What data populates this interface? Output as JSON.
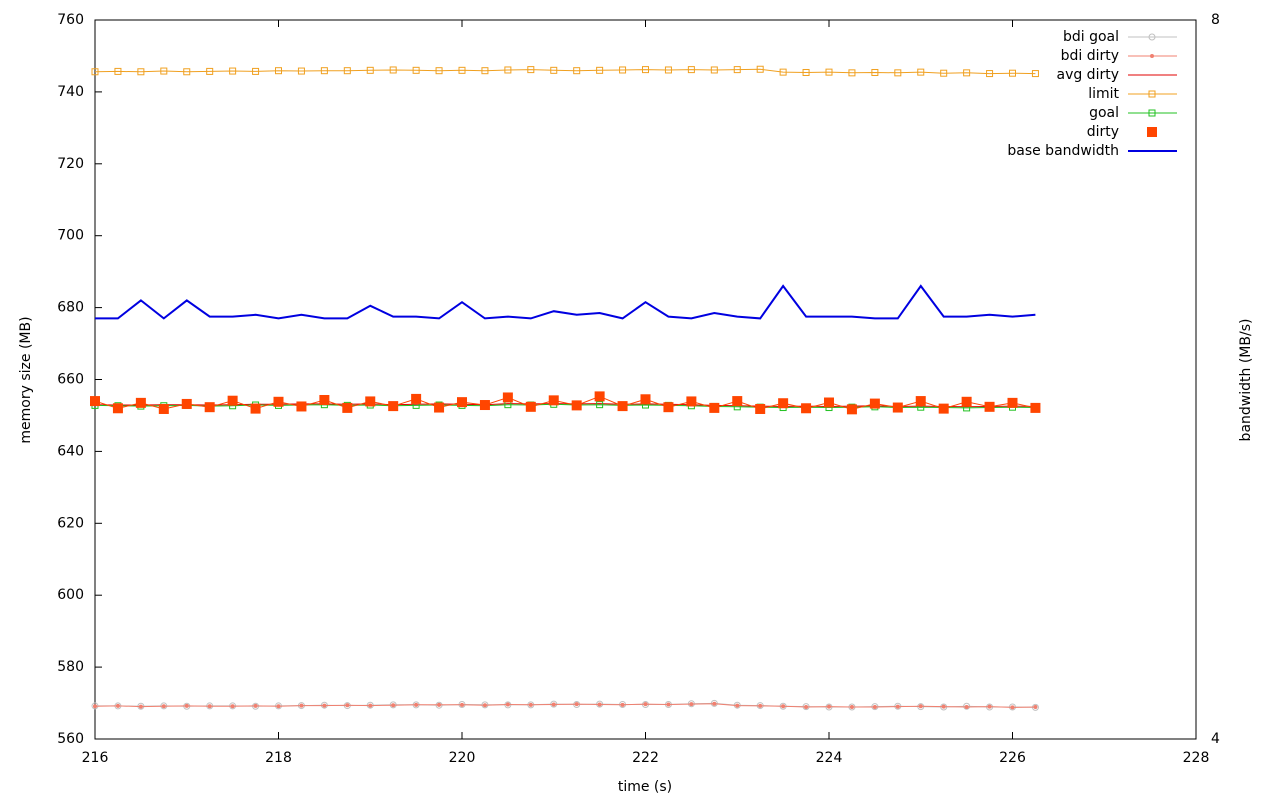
{
  "chart_data": {
    "type": "line",
    "xlabel": "time (s)",
    "ylabel": "memory size (MB)",
    "y2label": "bandwidth (MB/s)",
    "x": [
      216,
      216.25,
      216.5,
      216.75,
      217,
      217.25,
      217.5,
      217.75,
      218,
      218.25,
      218.5,
      218.75,
      219,
      219.25,
      219.5,
      219.75,
      220,
      220.25,
      220.5,
      220.75,
      221,
      221.25,
      221.5,
      221.75,
      222,
      222.25,
      222.5,
      222.75,
      223,
      223.25,
      223.5,
      223.75,
      224,
      224.25,
      224.5,
      224.75,
      225,
      225.25,
      225.5,
      225.75,
      226,
      226.25
    ],
    "xlim": [
      216,
      228
    ],
    "xticks": [
      216,
      218,
      220,
      222,
      224,
      226,
      228
    ],
    "ylim": [
      560,
      760
    ],
    "yticks": [
      560,
      580,
      600,
      620,
      640,
      660,
      680,
      700,
      720,
      740,
      760
    ],
    "y2lim": [
      4,
      8
    ],
    "y2ticks": [
      4,
      8
    ],
    "legend": "upper-right",
    "series": [
      {
        "name": "bdi goal",
        "color": "#c0c0c0",
        "marker": "circle",
        "values": [
          569.2,
          569.2,
          569.1,
          569.2,
          569.1,
          569.2,
          569.2,
          569.1,
          569.2,
          569.3,
          569.4,
          569.3,
          569.4,
          569.5,
          569.5,
          569.4,
          569.6,
          569.5,
          569.5,
          569.5,
          569.7,
          569.6,
          569.7,
          569.6,
          569.6,
          569.6,
          569.8,
          569.9,
          569.4,
          569.3,
          569.1,
          569.0,
          568.9,
          568.9,
          569.0,
          569.1,
          569.0,
          568.9,
          569.1,
          568.9,
          568.9,
          568.8
        ]
      },
      {
        "name": "bdi dirty",
        "color": "#f08070",
        "marker": "dot",
        "values": [
          569.1,
          569.2,
          569.0,
          569.1,
          569.2,
          569.1,
          569.1,
          569.2,
          569.1,
          569.3,
          569.3,
          569.4,
          569.3,
          569.4,
          569.5,
          569.5,
          569.5,
          569.4,
          569.6,
          569.5,
          569.6,
          569.7,
          569.6,
          569.5,
          569.7,
          569.6,
          569.7,
          569.8,
          569.3,
          569.2,
          569.1,
          568.9,
          569.0,
          568.9,
          568.9,
          569.0,
          569.1,
          569.0,
          568.9,
          569.0,
          568.8,
          568.9
        ]
      },
      {
        "name": "avg dirty",
        "color": "#e00000",
        "marker": "none",
        "values": [
          653.0,
          652.9,
          652.9,
          653.0,
          653.0,
          652.9,
          653.0,
          653.1,
          653.1,
          653.2,
          653.2,
          653.1,
          653.2,
          653.0,
          653.1,
          653.2,
          653.1,
          653.0,
          653.3,
          653.2,
          653.3,
          653.2,
          653.3,
          653.1,
          653.2,
          653.1,
          653.0,
          652.8,
          652.7,
          652.6,
          652.5,
          652.6,
          652.5,
          652.6,
          652.7,
          652.5,
          652.6,
          652.5,
          652.4,
          652.5,
          652.6,
          652.5
        ]
      },
      {
        "name": "limit",
        "color": "#f0a020",
        "marker": "square-open",
        "values": [
          745.6,
          745.7,
          745.6,
          745.8,
          745.6,
          745.7,
          745.8,
          745.7,
          745.9,
          745.8,
          745.9,
          745.9,
          746.0,
          746.1,
          746.0,
          745.9,
          746.0,
          745.9,
          746.1,
          746.2,
          746.0,
          745.9,
          746.0,
          746.1,
          746.2,
          746.1,
          746.2,
          746.1,
          746.2,
          746.3,
          745.5,
          745.4,
          745.5,
          745.3,
          745.4,
          745.3,
          745.5,
          745.2,
          745.3,
          745.1,
          745.2,
          745.1
        ]
      },
      {
        "name": "goal",
        "color": "#20c020",
        "marker": "square-open",
        "values": [
          652.8,
          652.7,
          652.6,
          652.7,
          652.8,
          652.6,
          652.7,
          652.9,
          652.8,
          652.9,
          653.0,
          652.8,
          652.9,
          652.7,
          652.8,
          652.9,
          652.8,
          652.7,
          653.0,
          652.9,
          653.1,
          652.9,
          653.0,
          652.8,
          652.9,
          652.8,
          652.7,
          652.5,
          652.4,
          652.3,
          652.2,
          652.3,
          652.2,
          652.3,
          652.4,
          652.2,
          652.3,
          652.2,
          652.1,
          652.2,
          652.3,
          652.2
        ]
      },
      {
        "name": "dirty",
        "color": "#ff4500",
        "marker": "square-filled",
        "values": [
          654.0,
          652.0,
          653.5,
          651.8,
          653.2,
          652.3,
          654.1,
          651.9,
          653.8,
          652.5,
          654.3,
          652.1,
          653.9,
          652.6,
          654.6,
          652.2,
          653.7,
          652.9,
          655.0,
          652.4,
          654.2,
          652.8,
          655.3,
          652.6,
          654.5,
          652.3,
          653.9,
          652.1,
          654.0,
          651.8,
          653.4,
          652.0,
          653.6,
          651.7,
          653.3,
          652.2,
          654.0,
          651.9,
          653.8,
          652.4,
          653.5,
          652.1
        ]
      },
      {
        "name": "base bandwidth",
        "color": "#0000e0",
        "marker": "line-thick",
        "axis": "y2",
        "values": [
          6.34,
          6.34,
          6.44,
          6.34,
          6.44,
          6.35,
          6.35,
          6.36,
          6.34,
          6.36,
          6.34,
          6.34,
          6.41,
          6.35,
          6.35,
          6.34,
          6.43,
          6.34,
          6.35,
          6.34,
          6.38,
          6.36,
          6.37,
          6.34,
          6.43,
          6.35,
          6.34,
          6.37,
          6.35,
          6.34,
          6.52,
          6.35,
          6.35,
          6.35,
          6.34,
          6.34,
          6.52,
          6.35,
          6.35,
          6.36,
          6.35,
          6.36
        ]
      }
    ]
  }
}
